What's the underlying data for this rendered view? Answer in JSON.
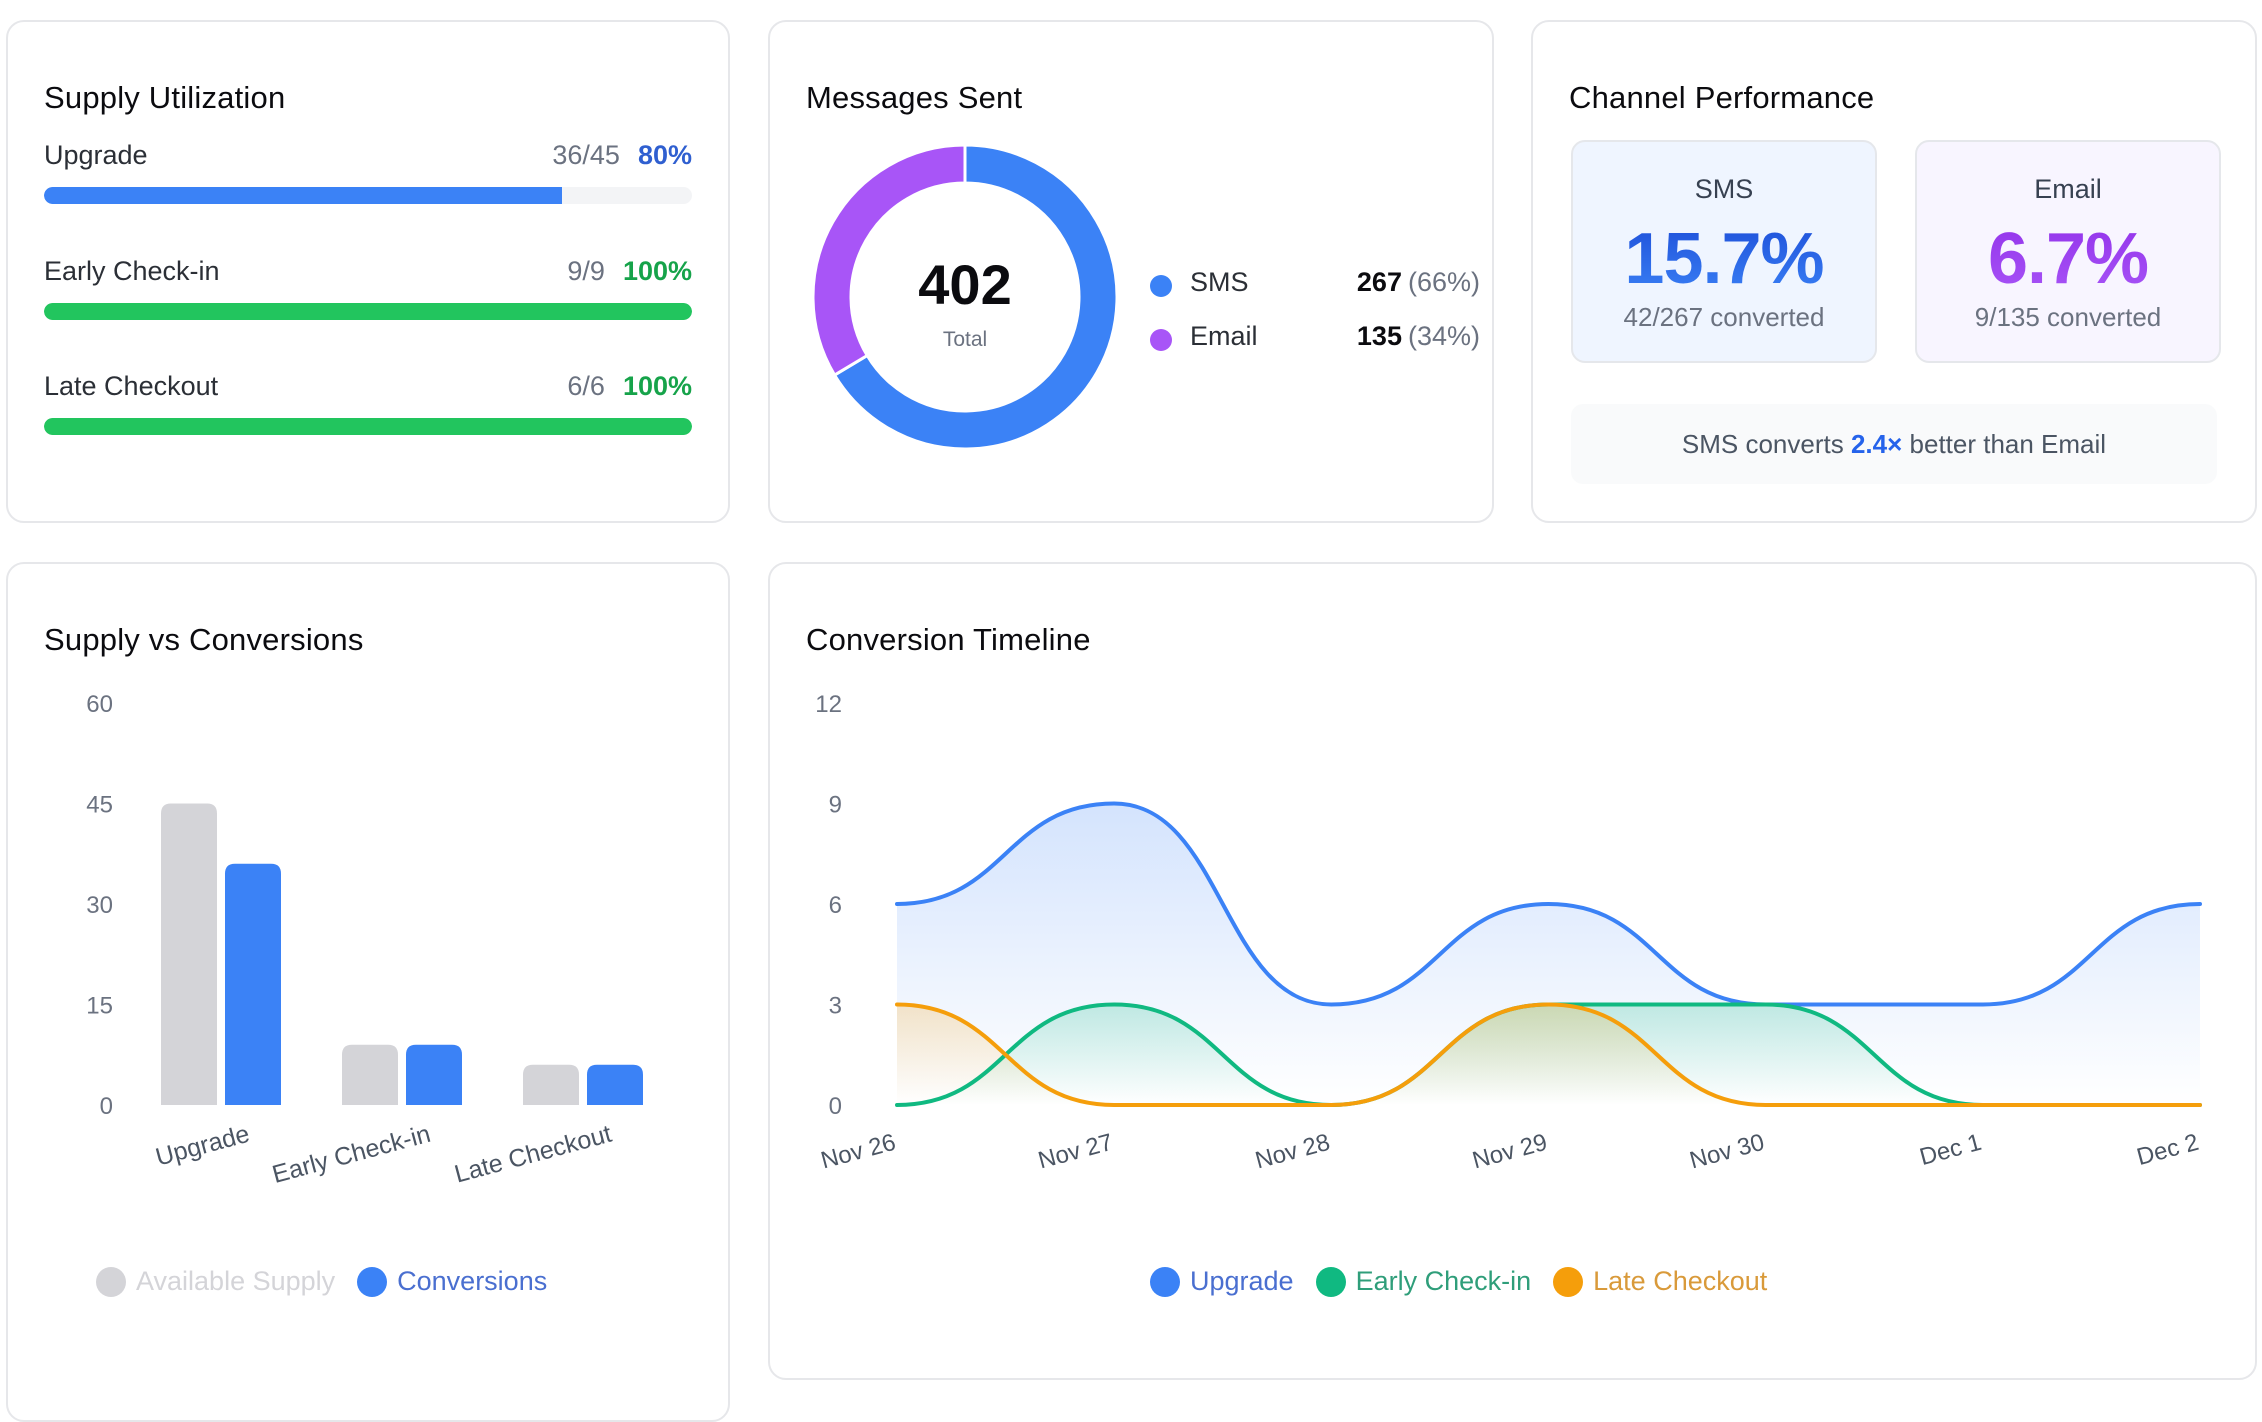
{
  "supply_utilization": {
    "title": "Supply Utilization",
    "rows": [
      {
        "label": "Upgrade",
        "fraction": "36/45",
        "percent_label": "80%",
        "fill_percent": 80,
        "color": "#3b82f6",
        "text_color": "#2f5fd0"
      },
      {
        "label": "Early Check-in",
        "fraction": "9/9",
        "percent_label": "100%",
        "fill_percent": 100,
        "color": "#22c55e",
        "text_color": "#16a34a"
      },
      {
        "label": "Late Checkout",
        "fraction": "6/6",
        "percent_label": "100%",
        "fill_percent": 100,
        "color": "#22c55e",
        "text_color": "#16a34a"
      }
    ]
  },
  "messages_sent": {
    "title": "Messages Sent",
    "total_value": "402",
    "total_label": "Total",
    "segments": [
      {
        "name": "SMS",
        "count": "267",
        "percent": "(66%)",
        "value": 267,
        "color": "#3b82f6"
      },
      {
        "name": "Email",
        "count": "135",
        "percent": "(34%)",
        "value": 135,
        "color": "#a855f7"
      }
    ]
  },
  "channel_performance": {
    "title": "Channel Performance",
    "channels": [
      {
        "name": "SMS",
        "rate": "15.7%",
        "detail": "42/267 converted",
        "gradient": [
          "#1d4ed8",
          "#3b82f6"
        ],
        "bg": "#eff5ff"
      },
      {
        "name": "Email",
        "rate": "6.7%",
        "detail": "9/135 converted",
        "gradient": [
          "#9333ea",
          "#a855f7"
        ],
        "bg": "#f8f5ff"
      }
    ],
    "comparison": {
      "prefix": "SMS converts ",
      "highlight": "2.4×",
      "suffix": " better than Email"
    }
  },
  "chart_data": [
    {
      "type": "bar",
      "title": "Supply vs Conversions",
      "categories": [
        "Upgrade",
        "Early Check-in",
        "Late Checkout"
      ],
      "series": [
        {
          "name": "Available Supply",
          "values": [
            45,
            9,
            6
          ],
          "color": "#d4d4d8",
          "legend_text_color": "#d4d4d8"
        },
        {
          "name": "Conversions",
          "values": [
            36,
            9,
            6
          ],
          "color": "#3b82f6",
          "legend_text_color": "#4a6fd0"
        }
      ],
      "yticks": [
        "0",
        "15",
        "30",
        "45",
        "60"
      ],
      "ylim": [
        0,
        60
      ],
      "xlabel": "",
      "ylabel": "",
      "grid": false,
      "legend": "bottom"
    },
    {
      "type": "area",
      "title": "Conversion Timeline",
      "x": [
        "Nov 26",
        "Nov 27",
        "Nov 28",
        "Nov 29",
        "Nov 30",
        "Dec 1",
        "Dec 2"
      ],
      "series": [
        {
          "name": "Upgrade",
          "values": [
            6,
            9,
            3,
            6,
            3,
            3,
            6
          ],
          "color": "#3b82f6",
          "legend_text_color": "#4a6fd0"
        },
        {
          "name": "Early Check-in",
          "values": [
            0,
            3,
            0,
            3,
            3,
            0,
            0
          ],
          "color": "#10b981",
          "legend_text_color": "#2f9e7a"
        },
        {
          "name": "Late Checkout",
          "values": [
            3,
            0,
            0,
            3,
            0,
            0,
            0
          ],
          "color": "#f59e0b",
          "legend_text_color": "#d99a3a"
        }
      ],
      "yticks": [
        "0",
        "3",
        "6",
        "9",
        "12"
      ],
      "ylim": [
        0,
        12
      ],
      "xlabel": "",
      "ylabel": "",
      "grid": false,
      "legend": "bottom"
    }
  ]
}
